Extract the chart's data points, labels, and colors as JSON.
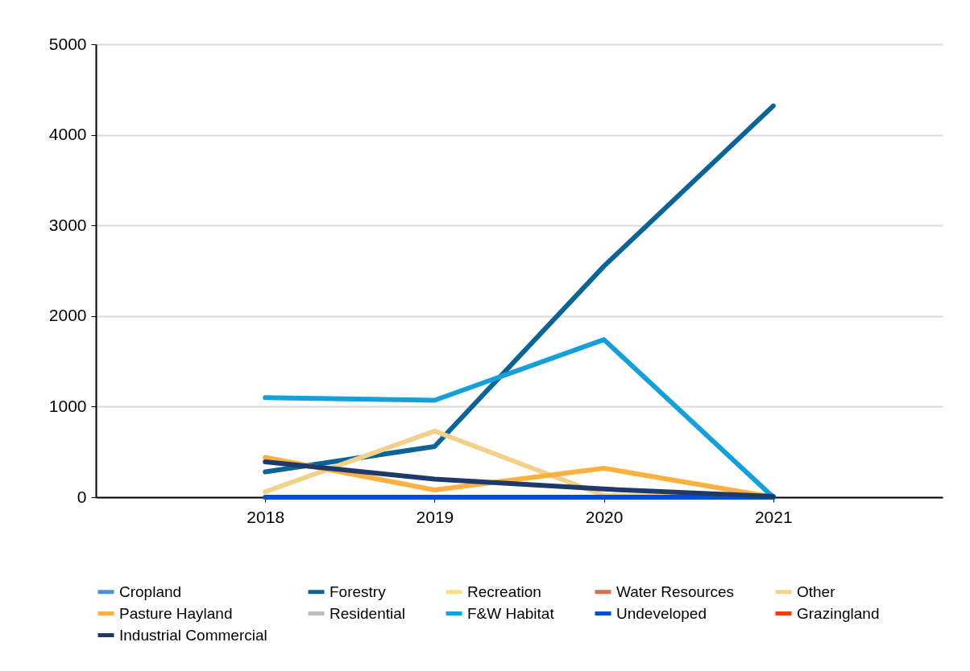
{
  "chart_data": {
    "type": "line",
    "categories": [
      "2018",
      "2019",
      "2020",
      "2021"
    ],
    "ylim": [
      0,
      5000
    ],
    "yticks": [
      0,
      1000,
      2000,
      3000,
      4000,
      5000
    ],
    "grid": "y",
    "legend": "bottom",
    "series": [
      {
        "name": "Cropland",
        "color": "#4a90e2",
        "values": [
          null,
          null,
          null,
          null
        ]
      },
      {
        "name": "Forestry",
        "color": "#0a6495",
        "values": [
          280,
          560,
          2550,
          4320
        ]
      },
      {
        "name": "Recreation",
        "color": "#ffe07a",
        "values": [
          null,
          null,
          null,
          null
        ]
      },
      {
        "name": "Water Resources",
        "color": "#d4704a",
        "values": [
          null,
          null,
          null,
          null
        ]
      },
      {
        "name": "Other",
        "color": "#f2d28a",
        "values": [
          60,
          730,
          20,
          0
        ]
      },
      {
        "name": "Pasture Hayland",
        "color": "#fbb040",
        "values": [
          440,
          80,
          320,
          0
        ]
      },
      {
        "name": "Residential",
        "color": "#bdbdbd",
        "values": [
          null,
          null,
          null,
          null
        ]
      },
      {
        "name": "F&W Habitat",
        "color": "#159fdb",
        "values": [
          1100,
          1070,
          1740,
          0
        ]
      },
      {
        "name": "Undeveloped",
        "color": "#0052cc",
        "values": [
          0,
          0,
          0,
          0
        ]
      },
      {
        "name": "Grazingland",
        "color": "#e8400c",
        "values": [
          null,
          null,
          null,
          null
        ]
      },
      {
        "name": "Industrial Commercial",
        "color": "#1f3a6a",
        "values": [
          390,
          200,
          90,
          10
        ]
      }
    ]
  }
}
